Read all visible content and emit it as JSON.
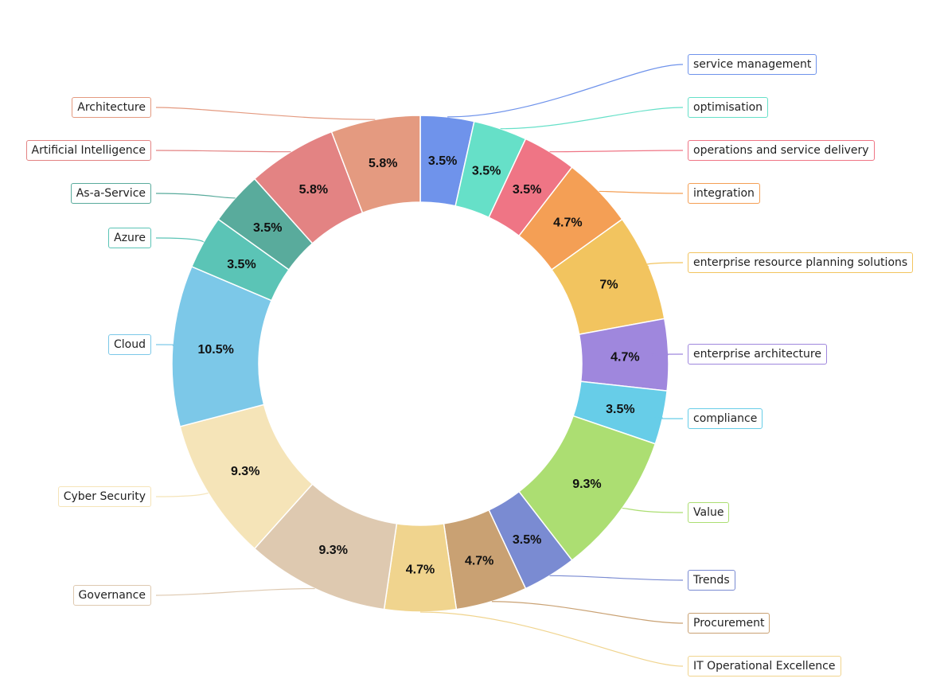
{
  "chart_data": {
    "type": "pie",
    "variant": "donut",
    "slices": [
      {
        "label": "service management",
        "count": 3,
        "value_label": "3.5%",
        "color": "#6f93eb"
      },
      {
        "label": "optimisation",
        "count": 3,
        "value_label": "3.5%",
        "color": "#66e0c8"
      },
      {
        "label": "operations and service delivery",
        "count": 3,
        "value_label": "3.5%",
        "color": "#ef7585"
      },
      {
        "label": "integration",
        "count": 4,
        "value_label": "4.7%",
        "color": "#f49f55"
      },
      {
        "label": "enterprise resource planning solutions",
        "count": 6,
        "value_label": "7%",
        "color": "#f2c45f"
      },
      {
        "label": "enterprise architecture",
        "count": 4,
        "value_label": "4.7%",
        "color": "#9f87dd"
      },
      {
        "label": "compliance",
        "count": 3,
        "value_label": "3.5%",
        "color": "#67cde8"
      },
      {
        "label": "Value",
        "count": 8,
        "value_label": "9.3%",
        "color": "#acde72"
      },
      {
        "label": "Trends",
        "count": 3,
        "value_label": "3.5%",
        "color": "#7a8bd2"
      },
      {
        "label": "Procurement",
        "count": 4,
        "value_label": "4.7%",
        "color": "#c9a173"
      },
      {
        "label": "IT Operational Excellence",
        "count": 4,
        "value_label": "4.7%",
        "color": "#f0d48e"
      },
      {
        "label": "Governance",
        "count": 8,
        "value_label": "9.3%",
        "color": "#dec9b0"
      },
      {
        "label": "Cyber Security",
        "count": 8,
        "value_label": "9.3%",
        "color": "#f5e4b8"
      },
      {
        "label": "Cloud",
        "count": 9,
        "value_label": "10.5%",
        "color": "#7cc8e8"
      },
      {
        "label": "Azure",
        "count": 3,
        "value_label": "3.5%",
        "color": "#5bc4b6"
      },
      {
        "label": "As-a-Service",
        "count": 3,
        "value_label": "3.5%",
        "color": "#59ab9c"
      },
      {
        "label": "Artificial Intelligence",
        "count": 5,
        "value_label": "5.8%",
        "color": "#e38383"
      },
      {
        "label": "Architecture",
        "count": 5,
        "value_label": "5.8%",
        "color": "#e49a80"
      }
    ]
  }
}
